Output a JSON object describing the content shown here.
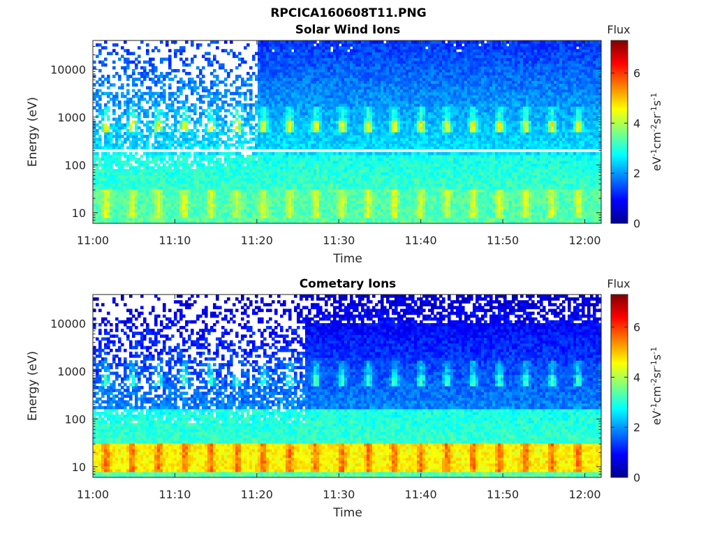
{
  "figure_title": "RPCICA160608T11.PNG",
  "chart_data": [
    {
      "type": "heatmap",
      "title": "Solar Wind Ions",
      "xlabel": "Time",
      "ylabel": "Energy (eV)",
      "x_ticks": [
        "11:00",
        "11:10",
        "11:20",
        "11:30",
        "11:40",
        "11:50",
        "12:00"
      ],
      "x_range": [
        "11:00",
        "12:02"
      ],
      "y_scale": "log",
      "y_ticks": [
        "10",
        "100",
        "1000",
        "10000"
      ],
      "y_range": [
        6,
        40000
      ],
      "colorbar": {
        "title": "Flux",
        "label": "eV-1cm-2sr-1s-1",
        "ticks": [
          "0",
          "2",
          "4",
          "6"
        ],
        "range": [
          0,
          7.3
        ],
        "colormap": "jet"
      },
      "features": {
        "sweep_minutes": 3.2,
        "solar_wind_peak_energy_eV": 650,
        "solar_wind_peak_flux": 4.6,
        "low_energy_band_eV": [
          8,
          30
        ],
        "low_energy_band_flux": 3.9,
        "background_flux_high_energy": 1.5,
        "gap_energy_eV": 200,
        "sparse_until": "11:20"
      }
    },
    {
      "type": "heatmap",
      "title": "Cometary Ions",
      "xlabel": "Time",
      "ylabel": "Energy (eV)",
      "x_ticks": [
        "11:00",
        "11:10",
        "11:20",
        "11:30",
        "11:40",
        "11:50",
        "12:00"
      ],
      "x_range": [
        "11:00",
        "12:02"
      ],
      "y_scale": "log",
      "y_ticks": [
        "10",
        "100",
        "1000",
        "10000"
      ],
      "y_range": [
        6,
        40000
      ],
      "colorbar": {
        "title": "Flux",
        "label": "eV-1cm-2sr-1s-1",
        "ticks": [
          "0",
          "2",
          "4",
          "6"
        ],
        "range": [
          0,
          7.3
        ],
        "colormap": "jet"
      },
      "features": {
        "sweep_minutes": 3.2,
        "solar_wind_peak_energy_eV": 650,
        "solar_wind_peak_flux": 3.2,
        "low_energy_band_eV": [
          8,
          30
        ],
        "low_energy_band_flux": 5.2,
        "background_flux_high_energy": 0.8,
        "sparse_until": "11:26"
      }
    }
  ]
}
